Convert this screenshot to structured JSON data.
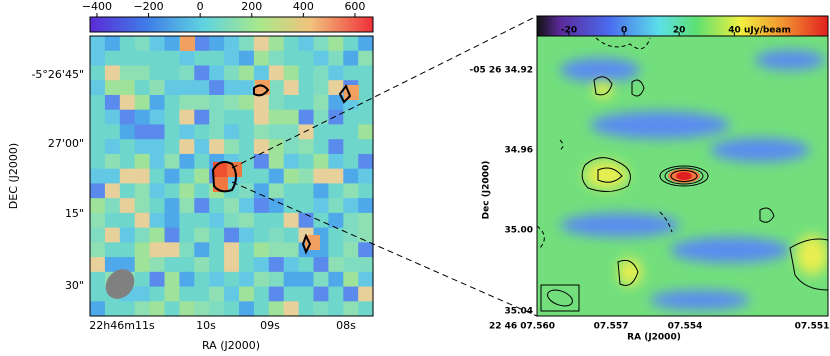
{
  "left_panel": {
    "colorbar": {
      "lim": [
        -427,
        670
      ],
      "ticks": [
        {
          "value": -400,
          "label": "−400"
        },
        {
          "value": -200,
          "label": "−200"
        },
        0,
        200,
        400,
        600
      ]
    },
    "y_label": "DEC (J2000)",
    "y_ticks": [
      "-5°26'45\"",
      "27'00\"",
      "15\"",
      "30\""
    ],
    "x_label": "RA (J2000)",
    "x_ticks": [
      "22h46m11s",
      "10s",
      "09s",
      "08s"
    ]
  },
  "right_panel": {
    "colorbar": {
      "lim": [
        -31.6,
        74
      ],
      "ticks": [
        -20,
        0,
        20,
        {
          "value": 40,
          "label": "40 uJy/beam"
        }
      ]
    },
    "y_label": "Dec (J2000)",
    "y_ticks": [
      "-05 26 34.92",
      "34.96",
      "35.00",
      "35.04"
    ],
    "x_label": "RA (J2000)",
    "x_ticks": [
      "22 46 07.560",
      "07.557",
      "07.554",
      "07.551"
    ]
  }
}
